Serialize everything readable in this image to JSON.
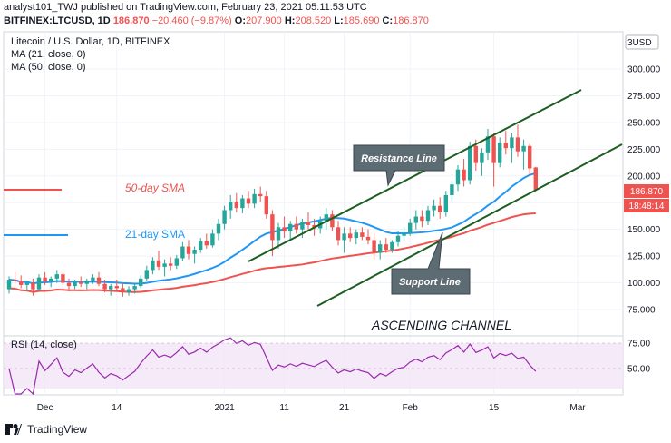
{
  "header": {
    "line1": "analyst101_TWJ published on TradingView.com, February 23, 2021 05:11:53 UTC",
    "symbol": "BITFINEX:LTCUSD, 1D",
    "price": "186.870",
    "change": "−20.460 (−9.87%)",
    "o_label": "O:",
    "o": "207.900",
    "h_label": "H:",
    "h": "208.520",
    "l_label": "L:",
    "l": "185.690",
    "c_label": "C:",
    "c": "186.870"
  },
  "legend": {
    "title": "Litecoin / U.S. Dollar, 1D, BITFINEX",
    "ma21": "MA (21, close, 0)",
    "ma50": "MA (50, close, 0)",
    "rsi": "RSI (14, close)"
  },
  "currency": "USD",
  "price_badge": "186.870",
  "countdown_badge": "18:48:14",
  "footer_brand": "TradingView",
  "colors": {
    "up": "#26a69a",
    "down": "#ef5350",
    "ma21": "#2196f3",
    "ma50": "#ef5350",
    "channel": "#1b5e20",
    "rsi": "#9c27b0",
    "rsi_band": "#f3e5f5"
  },
  "chart_data": {
    "type": "candlestick",
    "y_ticks": [
      "300.000",
      "275.000",
      "250.000",
      "225.000",
      "200.000",
      "175.000",
      "150.000",
      "125.000",
      "100.000",
      "75.000"
    ],
    "ylim": [
      50,
      320
    ],
    "x_ticks": [
      {
        "label": "Dec",
        "x": 6
      },
      {
        "label": "14",
        "x": 18
      },
      {
        "label": "2021",
        "x": 36
      },
      {
        "label": "11",
        "x": 46
      },
      {
        "label": "21",
        "x": 56
      },
      {
        "label": "Feb",
        "x": 67
      },
      {
        "label": "15",
        "x": 81
      },
      {
        "label": "Mar",
        "x": 95
      }
    ],
    "candles": [
      [
        0,
        94,
        106,
        90,
        103
      ],
      [
        1,
        103,
        110,
        99,
        102
      ],
      [
        2,
        102,
        107,
        95,
        98
      ],
      [
        3,
        98,
        102,
        92,
        100
      ],
      [
        4,
        100,
        104,
        88,
        94
      ],
      [
        5,
        94,
        108,
        92,
        105
      ],
      [
        6,
        105,
        110,
        98,
        101
      ],
      [
        7,
        101,
        106,
        96,
        104
      ],
      [
        8,
        104,
        112,
        100,
        108
      ],
      [
        9,
        108,
        110,
        98,
        100
      ],
      [
        10,
        100,
        104,
        92,
        97
      ],
      [
        11,
        97,
        103,
        94,
        101
      ],
      [
        12,
        101,
        106,
        96,
        99
      ],
      [
        13,
        99,
        104,
        94,
        102
      ],
      [
        14,
        102,
        108,
        99,
        105
      ],
      [
        15,
        105,
        110,
        97,
        99
      ],
      [
        16,
        99,
        103,
        91,
        94
      ],
      [
        17,
        94,
        99,
        88,
        97
      ],
      [
        18,
        97,
        103,
        93,
        95
      ],
      [
        19,
        95,
        99,
        87,
        91
      ],
      [
        20,
        91,
        97,
        88,
        94
      ],
      [
        21,
        94,
        100,
        90,
        97
      ],
      [
        22,
        97,
        107,
        95,
        104
      ],
      [
        23,
        104,
        116,
        102,
        112
      ],
      [
        24,
        112,
        124,
        108,
        121
      ],
      [
        25,
        121,
        130,
        112,
        115
      ],
      [
        26,
        115,
        122,
        106,
        118
      ],
      [
        27,
        118,
        124,
        112,
        116
      ],
      [
        28,
        116,
        126,
        113,
        123
      ],
      [
        29,
        123,
        138,
        120,
        134
      ],
      [
        30,
        134,
        140,
        122,
        127
      ],
      [
        31,
        127,
        134,
        118,
        131
      ],
      [
        32,
        131,
        142,
        128,
        139
      ],
      [
        33,
        139,
        146,
        132,
        135
      ],
      [
        34,
        135,
        150,
        133,
        146
      ],
      [
        35,
        146,
        160,
        140,
        155
      ],
      [
        36,
        155,
        172,
        150,
        168
      ],
      [
        37,
        168,
        182,
        160,
        176
      ],
      [
        38,
        176,
        184,
        166,
        170
      ],
      [
        39,
        170,
        182,
        165,
        179
      ],
      [
        40,
        179,
        186,
        170,
        174
      ],
      [
        41,
        174,
        188,
        170,
        183
      ],
      [
        42,
        183,
        190,
        176,
        181
      ],
      [
        43,
        181,
        186,
        160,
        164
      ],
      [
        44,
        164,
        168,
        125,
        140
      ],
      [
        45,
        140,
        156,
        132,
        152
      ],
      [
        46,
        152,
        162,
        142,
        148
      ],
      [
        47,
        148,
        158,
        140,
        155
      ],
      [
        48,
        155,
        162,
        146,
        150
      ],
      [
        49,
        150,
        160,
        142,
        157
      ],
      [
        50,
        157,
        166,
        150,
        154
      ],
      [
        51,
        154,
        160,
        144,
        151
      ],
      [
        52,
        151,
        162,
        146,
        158
      ],
      [
        53,
        158,
        170,
        150,
        164
      ],
      [
        54,
        164,
        168,
        148,
        152
      ],
      [
        55,
        152,
        158,
        135,
        140
      ],
      [
        56,
        140,
        152,
        128,
        146
      ],
      [
        57,
        146,
        152,
        138,
        142
      ],
      [
        58,
        142,
        150,
        136,
        147
      ],
      [
        59,
        147,
        152,
        140,
        143
      ],
      [
        60,
        143,
        150,
        136,
        140
      ],
      [
        61,
        140,
        146,
        122,
        128
      ],
      [
        62,
        128,
        140,
        122,
        136
      ],
      [
        63,
        136,
        142,
        128,
        131
      ],
      [
        64,
        131,
        140,
        128,
        138
      ],
      [
        65,
        138,
        148,
        134,
        144
      ],
      [
        66,
        144,
        152,
        140,
        146
      ],
      [
        67,
        146,
        160,
        144,
        156
      ],
      [
        68,
        156,
        168,
        150,
        162
      ],
      [
        69,
        162,
        168,
        152,
        158
      ],
      [
        70,
        158,
        172,
        154,
        168
      ],
      [
        71,
        168,
        178,
        162,
        172
      ],
      [
        72,
        172,
        180,
        160,
        166
      ],
      [
        73,
        166,
        186,
        162,
        182
      ],
      [
        74,
        182,
        196,
        176,
        192
      ],
      [
        75,
        192,
        210,
        186,
        206
      ],
      [
        76,
        206,
        216,
        190,
        196
      ],
      [
        77,
        196,
        232,
        192,
        228
      ],
      [
        78,
        228,
        234,
        205,
        212
      ],
      [
        79,
        212,
        226,
        200,
        222
      ],
      [
        80,
        222,
        244,
        215,
        237
      ],
      [
        81,
        237,
        240,
        190,
        212
      ],
      [
        82,
        212,
        236,
        208,
        231
      ],
      [
        83,
        231,
        242,
        220,
        226
      ],
      [
        84,
        226,
        240,
        212,
        236
      ],
      [
        85,
        236,
        248,
        218,
        223
      ],
      [
        86,
        223,
        234,
        206,
        228
      ],
      [
        87,
        228,
        230,
        200,
        207
      ],
      [
        88,
        207.9,
        208.52,
        185.69,
        186.87
      ]
    ],
    "rsi_ticks": [
      "75.00",
      "50.00"
    ],
    "rsi_ylim": [
      20,
      85
    ],
    "annotations": {
      "sma50": "50-day SMA",
      "sma21": "21-day SMA",
      "resistance": "Resistance Line",
      "support": "Support Line",
      "channel": "ASCENDING CHANNEL"
    }
  }
}
